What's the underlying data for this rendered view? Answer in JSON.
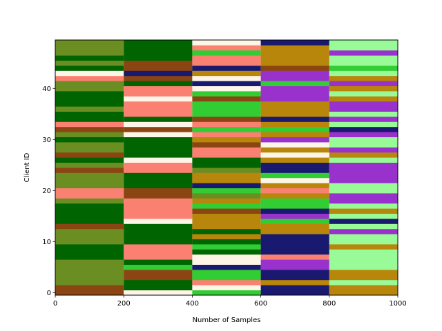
{
  "chart_data": {
    "type": "bar",
    "orientation": "horizontal-stacked",
    "xlabel": "Number of Samples",
    "ylabel": "Client ID",
    "xlim": [
      0,
      1000
    ],
    "ylim": [
      -0.5,
      49.5
    ],
    "xticks": [
      0,
      200,
      400,
      600,
      800,
      1000
    ],
    "yticks": [
      0,
      10,
      20,
      30,
      40
    ],
    "grid": false,
    "legend": "none",
    "segment_width": 200,
    "segment_starts": [
      0,
      200,
      400,
      600,
      800
    ],
    "palette": {
      "A": "#8B4513",
      "B": "#6B8E23",
      "C": "#006400",
      "D": "#FA8072",
      "E": "#FDF5E6",
      "F": "#191970",
      "G": "#32CD32",
      "H": "#B8860B",
      "I": "#9932CC",
      "J": "#98FB98"
    },
    "rows": [
      "AEGFH",
      "ACEFH",
      "BCDHJ",
      "BAGFH",
      "BAGFH",
      "BGFIJ",
      "BCEIJ",
      "CDEDJ",
      "CDCFJ",
      "CDGFH",
      "BCCFJ",
      "BCHFJ",
      "BCCHI",
      "ACHHJ",
      "CEHGF",
      "CDHIJ",
      "CDAFH",
      "CDGGJ",
      "BDHGI",
      "DABHI",
      "DAGDJ",
      "BCFHJ",
      "BCHEI",
      "BCHGI",
      "ADBFI",
      "BDCFI",
      "CECHJ",
      "ACDEH",
      "BCDHI",
      "BCAEJ",
      "CCHIJ",
      "BEDHI",
      "AAGGF",
      "DEDHJ",
      "CCAFI",
      "CDGHJ",
      "BDGHI",
      "CDGHI",
      "CEAIH",
      "CDGIJ",
      "BDEIH",
      "BCFGI",
      "DAEIH",
      "EFHIJ",
      "CAFAG",
      "BADHJ",
      "CCDHJ",
      "BCGHI",
      "BCDHJ",
      "BCEFJ"
    ]
  }
}
